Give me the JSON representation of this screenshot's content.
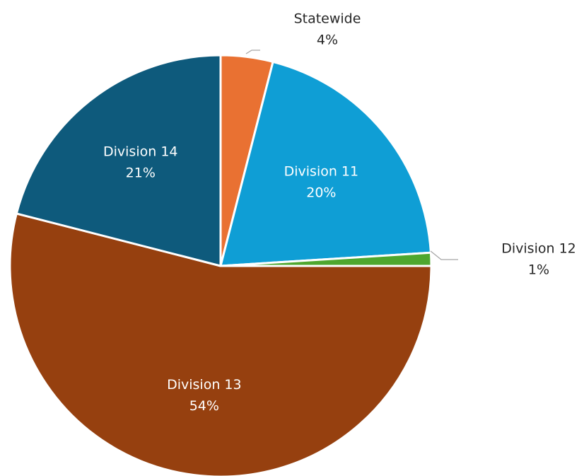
{
  "chart_data": {
    "type": "pie",
    "title": "",
    "slices": [
      {
        "label": "Statewide",
        "value": 4,
        "pct_label": "4%",
        "color": "#e97132",
        "label_position": "outside"
      },
      {
        "label": "Division 11",
        "value": 20,
        "pct_label": "20%",
        "color": "#0f9ed5",
        "label_position": "inside"
      },
      {
        "label": "Division 12",
        "value": 1,
        "pct_label": "1%",
        "color": "#4ea72e",
        "label_position": "outside"
      },
      {
        "label": "Division 13",
        "value": 54,
        "pct_label": "54%",
        "color": "#96400f",
        "label_position": "inside"
      },
      {
        "label": "Division 14",
        "value": 21,
        "pct_label": "21%",
        "color": "#0e5a7c",
        "label_position": "inside"
      }
    ],
    "start_angle_deg": 0,
    "direction": "clockwise",
    "legend": "none",
    "inside_label_color": "#ffffff",
    "outside_label_color": "#262626"
  }
}
